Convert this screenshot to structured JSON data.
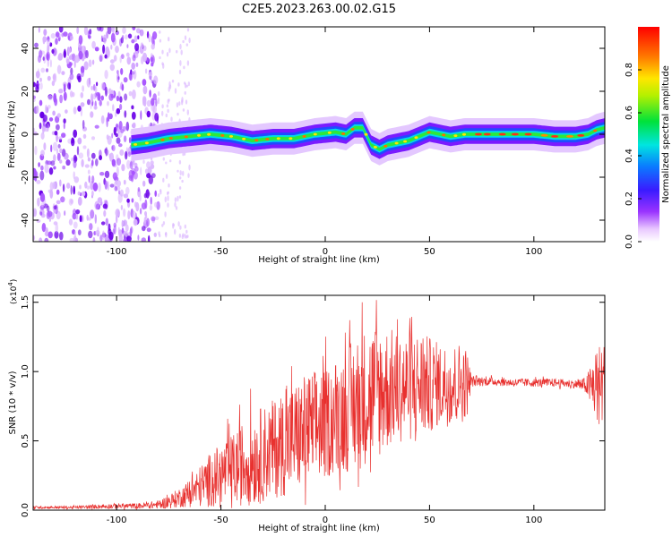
{
  "title": "C2E5.2023.263.00.02.G15",
  "chart_data": [
    {
      "type": "heatmap",
      "xlabel": "Height of straight line (km)",
      "ylabel": "Frequency (Hz)",
      "xlim": [
        -140,
        134
      ],
      "ylim": [
        -50,
        50
      ],
      "xticks": [
        -100,
        -50,
        0,
        50,
        100
      ],
      "xtick_labels": [
        "-100",
        "-50",
        "0",
        "50",
        "100"
      ],
      "yticks": [
        -40,
        -20,
        0,
        20,
        40
      ],
      "ytick_labels": [
        "-40",
        "-20",
        "0",
        "20",
        "40"
      ],
      "colorbar": {
        "label": "Normalized spectral amplitude",
        "range": [
          0,
          1
        ],
        "ticks": [
          0.0,
          0.2,
          0.4,
          0.6,
          0.8
        ],
        "tick_labels": [
          "0.0",
          "0.2",
          "0.4",
          "0.6",
          "0.8"
        ],
        "colormap": "rainbow (white-violet-blue-cyan-green-yellow-red)"
      },
      "ridge": {
        "x": [
          -93,
          -85,
          -75,
          -65,
          -55,
          -45,
          -35,
          -25,
          -15,
          -5,
          5,
          10,
          14,
          18,
          22,
          26,
          30,
          40,
          50,
          60,
          67,
          70,
          80,
          90,
          100,
          110,
          120,
          126,
          130,
          134
        ],
        "y": [
          -5,
          -4,
          -2,
          -1,
          0,
          -1,
          -3,
          -2,
          -2,
          0,
          1,
          0,
          3,
          3,
          -5,
          -7,
          -5,
          -3,
          1,
          -1,
          0,
          0,
          0,
          0,
          0,
          -1,
          -1,
          0,
          2,
          3
        ]
      },
      "noise_region_x": [
        -140,
        -80
      ],
      "grid": false
    },
    {
      "type": "line",
      "xlabel": "Height of straight line (km)",
      "ylabel": "SNR (10 * v/v)",
      "y_multiplier_label": "(x10",
      "y_multiplier_exp": "4",
      "xlim": [
        -140,
        134
      ],
      "ylim": [
        0,
        1.55
      ],
      "xticks": [
        -100,
        -50,
        0,
        50,
        100
      ],
      "xtick_labels": [
        "-100",
        "-50",
        "0",
        "50",
        "100"
      ],
      "yticks": [
        0.0,
        0.5,
        1.0,
        1.5
      ],
      "ytick_labels": [
        "0.0",
        "0.5",
        "1.0",
        "1.5"
      ],
      "color": "#e8312f",
      "series": [
        {
          "x": [
            -140,
            -120,
            -100,
            -90,
            -80,
            -75,
            -70,
            -65,
            -60,
            -55,
            -50,
            -45,
            -40,
            -35,
            -30,
            -25,
            -20,
            -15,
            -10,
            -5,
            0,
            5,
            10,
            15,
            20,
            25,
            30,
            35,
            40,
            45,
            50,
            55,
            60,
            65,
            68,
            70,
            80,
            90,
            100,
            110,
            120,
            125,
            128,
            131,
            134
          ],
          "y": [
            0.02,
            0.02,
            0.03,
            0.03,
            0.04,
            0.06,
            0.09,
            0.12,
            0.17,
            0.22,
            0.26,
            0.29,
            0.33,
            0.37,
            0.4,
            0.44,
            0.48,
            0.52,
            0.56,
            0.6,
            0.62,
            0.68,
            0.72,
            0.77,
            0.83,
            0.86,
            0.88,
            0.88,
            0.89,
            0.9,
            0.9,
            0.91,
            0.9,
            0.92,
            0.92,
            0.93,
            0.93,
            0.92,
            0.92,
            0.92,
            0.91,
            0.9,
            0.89,
            0.9,
            0.9
          ],
          "spread": [
            0.01,
            0.01,
            0.02,
            0.02,
            0.03,
            0.05,
            0.07,
            0.1,
            0.15,
            0.2,
            0.22,
            0.25,
            0.3,
            0.34,
            0.35,
            0.36,
            0.38,
            0.4,
            0.42,
            0.42,
            0.4,
            0.42,
            0.45,
            0.5,
            0.5,
            0.5,
            0.45,
            0.4,
            0.4,
            0.4,
            0.35,
            0.3,
            0.3,
            0.3,
            0.25,
            0.04,
            0.03,
            0.03,
            0.03,
            0.03,
            0.03,
            0.06,
            0.2,
            0.3,
            0.32
          ]
        }
      ],
      "grid": false
    }
  ]
}
